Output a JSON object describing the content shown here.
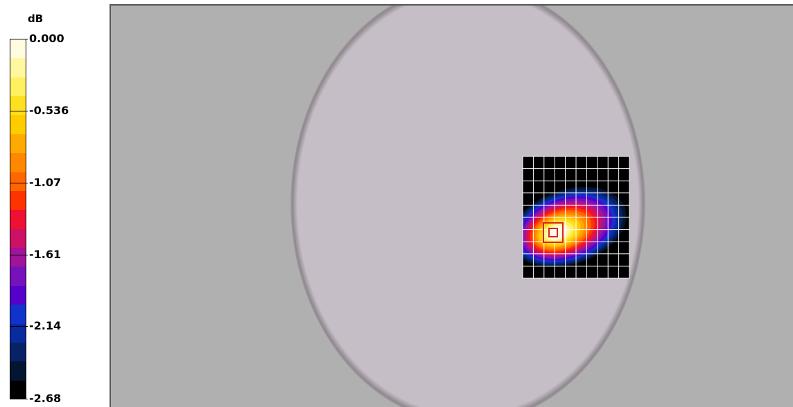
{
  "chart_data": {
    "type": "heatmap",
    "title": "",
    "legend": {
      "unit": "dB",
      "placement": "left",
      "min": -2.68,
      "max": 0.0,
      "tick_labels": [
        "0.000",
        "-0.536",
        "-1.07",
        "-1.61",
        "-2.14",
        "-2.68"
      ],
      "tick_values": [
        0.0,
        -0.536,
        -1.07,
        -1.61,
        -2.14,
        -2.68
      ],
      "colors": [
        "#fffce0",
        "#fff8a0",
        "#fff060",
        "#ffe020",
        "#ffcc00",
        "#ffaa00",
        "#ff8800",
        "#ff6600",
        "#ff3300",
        "#ee1133",
        "#cc1166",
        "#a01499",
        "#7711bb",
        "#5500cc",
        "#1133cc",
        "#0a2aa0",
        "#082266",
        "#041433",
        "#000000"
      ]
    },
    "phantom_color": "#c6bec6",
    "background_color": "#b0b0b0",
    "grid": true,
    "scan_grid": {
      "rows": 10,
      "cols": 10
    },
    "peak_location": "grid cell row 6, col 3"
  }
}
